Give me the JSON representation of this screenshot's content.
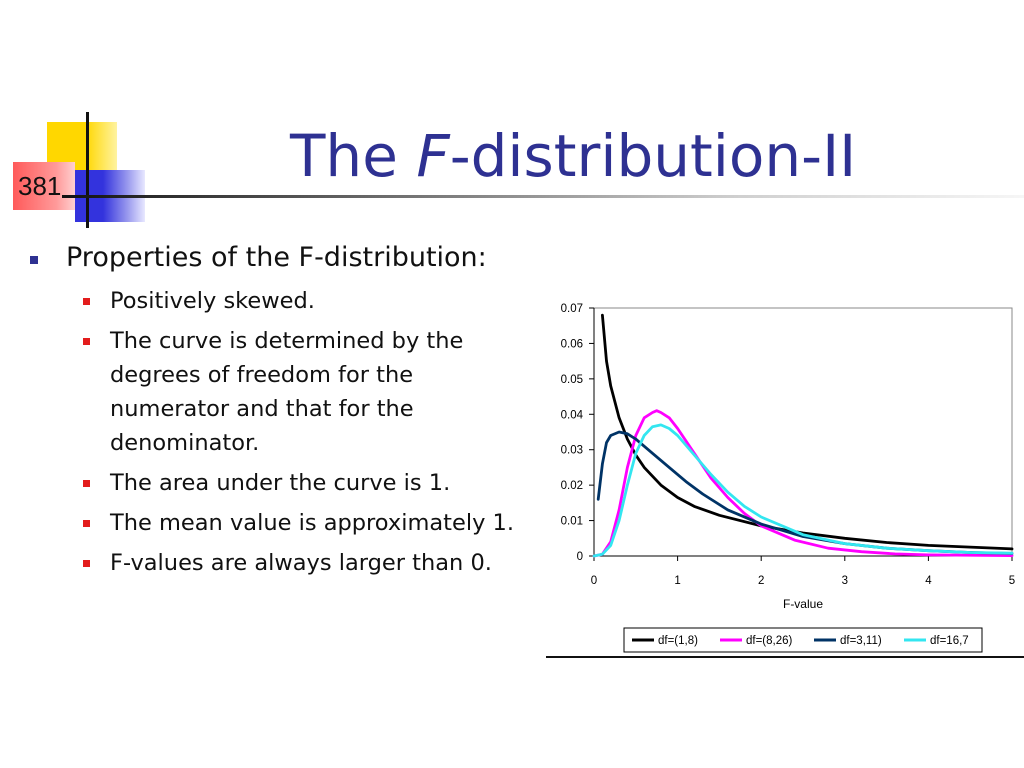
{
  "slide": {
    "number": "381",
    "title_prefix": "The ",
    "title_italic": "F",
    "title_suffix": "-distribution-II"
  },
  "bullets": {
    "main": "Properties of the F-distribution:",
    "sub": [
      "Positively skewed.",
      "The curve is determined by the degrees of freedom for the numerator and that for the denominator.",
      "The area under the curve is 1.",
      "The mean value is approximately 1.",
      "F-values are always larger than 0."
    ]
  },
  "colors": {
    "title": "#2e3192",
    "main_bullet": "#2e3192",
    "sub_bullet": "#e31c1c"
  },
  "chart_data": {
    "type": "line",
    "title": "",
    "xlabel": "F-value",
    "ylabel": "",
    "xlim": [
      0,
      5
    ],
    "ylim": [
      0,
      0.07
    ],
    "xticks": [
      "0",
      "1",
      "2",
      "3",
      "4",
      "5"
    ],
    "yticks": [
      "0",
      "0.01",
      "0.02",
      "0.03",
      "0.04",
      "0.05",
      "0.06",
      "0.07"
    ],
    "grid": false,
    "legend_position": "bottom",
    "series": [
      {
        "name": "df=(1,8)",
        "color": "#000000",
        "x": [
          0.1,
          0.15,
          0.2,
          0.3,
          0.4,
          0.5,
          0.6,
          0.8,
          1.0,
          1.2,
          1.5,
          2.0,
          2.5,
          3.0,
          3.5,
          4.0,
          4.5,
          5.0
        ],
        "y": [
          0.068,
          0.055,
          0.048,
          0.039,
          0.033,
          0.0285,
          0.025,
          0.02,
          0.0165,
          0.014,
          0.0115,
          0.0085,
          0.0065,
          0.005,
          0.0038,
          0.003,
          0.0025,
          0.002
        ]
      },
      {
        "name": "df=(8,26)",
        "color": "#ff00ff",
        "x": [
          0.0,
          0.1,
          0.2,
          0.3,
          0.4,
          0.5,
          0.6,
          0.7,
          0.75,
          0.8,
          0.9,
          1.0,
          1.2,
          1.4,
          1.6,
          1.8,
          2.0,
          2.4,
          2.8,
          3.2,
          3.6,
          4.0,
          5.0
        ],
        "y": [
          0.0,
          0.0005,
          0.004,
          0.013,
          0.025,
          0.034,
          0.039,
          0.0405,
          0.041,
          0.0405,
          0.039,
          0.036,
          0.029,
          0.022,
          0.0165,
          0.012,
          0.0085,
          0.0045,
          0.0022,
          0.0012,
          0.0006,
          0.0003,
          0.0001
        ]
      },
      {
        "name": "df=3,11)",
        "color": "#003366",
        "x": [
          0.05,
          0.1,
          0.15,
          0.2,
          0.3,
          0.4,
          0.5,
          0.7,
          0.9,
          1.1,
          1.3,
          1.6,
          2.0,
          2.5,
          3.0,
          3.5,
          4.0,
          4.5,
          5.0
        ],
        "y": [
          0.016,
          0.026,
          0.032,
          0.034,
          0.035,
          0.0345,
          0.033,
          0.029,
          0.025,
          0.021,
          0.0175,
          0.013,
          0.009,
          0.0055,
          0.0035,
          0.0022,
          0.0015,
          0.001,
          0.0007
        ]
      },
      {
        "name": "df=16,7",
        "color": "#33e6f0",
        "x": [
          0.0,
          0.1,
          0.2,
          0.3,
          0.4,
          0.5,
          0.6,
          0.7,
          0.8,
          0.9,
          1.0,
          1.2,
          1.4,
          1.6,
          1.8,
          2.0,
          2.5,
          3.0,
          3.5,
          4.0,
          4.5,
          5.0
        ],
        "y": [
          0.0,
          0.0005,
          0.003,
          0.01,
          0.02,
          0.029,
          0.034,
          0.0365,
          0.037,
          0.036,
          0.034,
          0.0285,
          0.023,
          0.018,
          0.014,
          0.011,
          0.006,
          0.0035,
          0.0022,
          0.0015,
          0.001,
          0.0008
        ]
      }
    ]
  }
}
